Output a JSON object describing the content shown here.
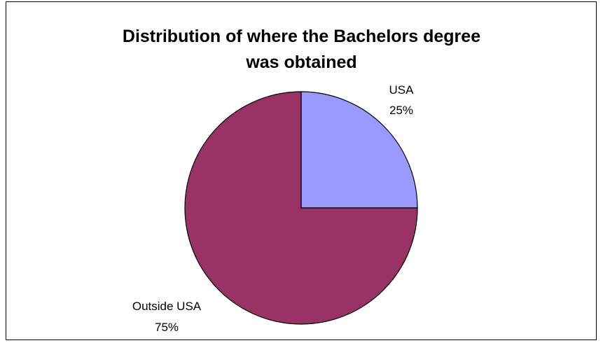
{
  "chart_data": {
    "type": "pie",
    "title": "Distribution of where the Bachelors degree\nwas obtained",
    "categories": [
      "USA",
      "Outside USA"
    ],
    "values": [
      25,
      75
    ],
    "value_labels": [
      "25%",
      "75%"
    ],
    "colors": [
      "#9999ff",
      "#993366"
    ],
    "legend": "none",
    "start": "12 o'clock",
    "direction": "clockwise"
  }
}
